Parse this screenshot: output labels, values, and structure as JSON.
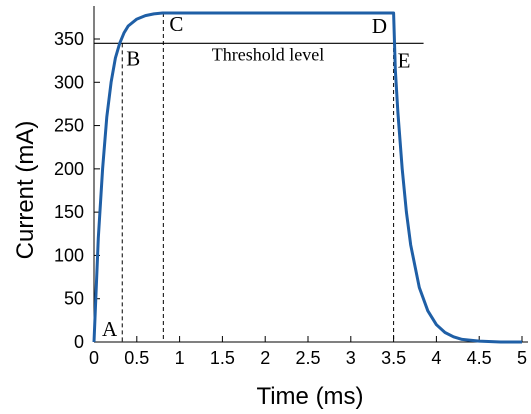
{
  "chart_data": {
    "type": "line",
    "xlabel": "Time (ms)",
    "ylabel": "Current (mA)",
    "xlim": [
      0,
      5
    ],
    "ylim": [
      0,
      380
    ],
    "xticks": [
      "0",
      "0.5",
      "1",
      "1.5",
      "2",
      "2.5",
      "3",
      "3.5",
      "4",
      "4.5",
      "5"
    ],
    "yticks": [
      "0",
      "50",
      "100",
      "150",
      "200",
      "250",
      "300",
      "350"
    ],
    "grid": false,
    "series": [
      {
        "color": "#1f5fa6",
        "x": [
          0,
          0.05,
          0.1,
          0.15,
          0.2,
          0.25,
          0.3,
          0.35,
          0.4,
          0.5,
          0.6,
          0.7,
          0.8,
          1.0,
          1.5,
          2.0,
          2.5,
          3.0,
          3.45,
          3.5,
          3.52,
          3.55,
          3.6,
          3.65,
          3.7,
          3.8,
          3.9,
          4.0,
          4.1,
          4.2,
          4.3,
          4.5,
          4.75,
          5.0
        ],
        "y": [
          0,
          120,
          200,
          260,
          300,
          328,
          345,
          357,
          365,
          373,
          377,
          379,
          380,
          380,
          380,
          380,
          380,
          380,
          380,
          380,
          315,
          265,
          200,
          150,
          112,
          63,
          36,
          20,
          11,
          6,
          3,
          1,
          0,
          0
        ]
      }
    ],
    "threshold": {
      "value": 345,
      "label": "Threshold level",
      "x_range": [
        0,
        3.85
      ]
    },
    "vlines": [
      {
        "x": 0.33,
        "y_top": 345
      },
      {
        "x": 0.81,
        "y_top": 380
      },
      {
        "x": 3.5,
        "y_top": 380
      }
    ],
    "points": [
      {
        "label": "A",
        "x": 0.0,
        "y": 0
      },
      {
        "label": "B",
        "x": 0.33,
        "y": 345
      },
      {
        "label": "C",
        "x": 0.81,
        "y": 380
      },
      {
        "label": "D",
        "x": 3.48,
        "y": 380
      },
      {
        "label": "E",
        "x": 3.5,
        "y": 345
      }
    ]
  }
}
